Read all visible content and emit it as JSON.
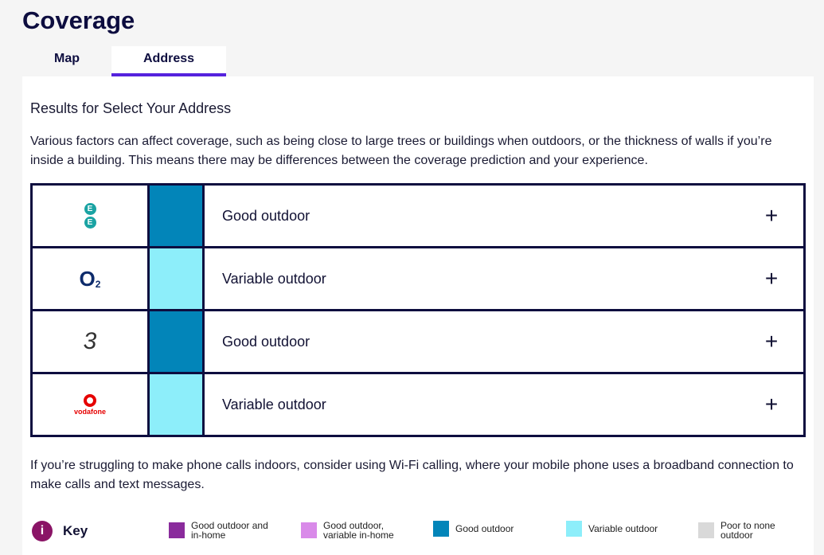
{
  "header": {
    "title": "Coverage"
  },
  "tabs": {
    "items": [
      "Map",
      "Address"
    ],
    "active": 1
  },
  "results": {
    "heading": "Results for Select Your Address",
    "intro": "Various factors can affect coverage, such as being close to large trees or buildings when outdoors, or the thickness of walls if you’re inside a building. This means there may be differences between the coverage prediction and your experience.",
    "operators": [
      {
        "logo": [
          "E",
          "E"
        ],
        "color": "#0285b9",
        "status": "Good outdoor"
      },
      {
        "logo": [
          "O",
          "2"
        ],
        "color": "#8deefa",
        "status": "Variable outdoor"
      },
      {
        "logo": [
          "3"
        ],
        "color": "#0285b9",
        "status": "Good outdoor"
      },
      {
        "logo": [
          "vodafone"
        ],
        "color": "#8deefa",
        "status": "Variable outdoor"
      }
    ],
    "note": "If you’re struggling to make phone calls indoors, consider using Wi-Fi calling, where your mobile phone uses a broadband connection to make calls and text messages."
  },
  "key": {
    "icon": "i",
    "title": "Key",
    "items": [
      {
        "label": "Good outdoor and in-home",
        "color": "#8a2b9c"
      },
      {
        "label": "Good outdoor, variable in-home",
        "color": "#d98ae9"
      },
      {
        "label": "Good outdoor",
        "color": "#0285b9"
      },
      {
        "label": "Variable outdoor",
        "color": "#8deefa"
      },
      {
        "label": "Poor to none outdoor",
        "color": "#d9d9d9"
      }
    ]
  }
}
